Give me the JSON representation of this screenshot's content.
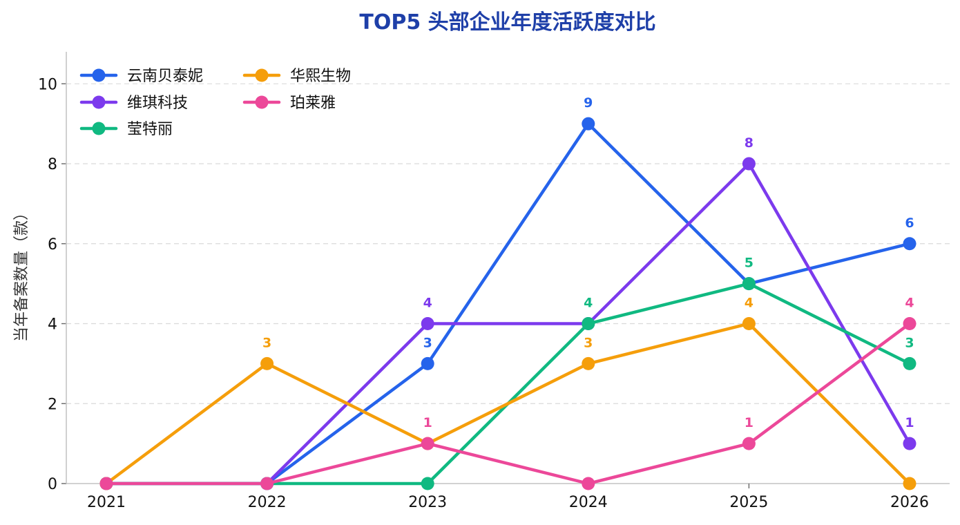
{
  "chart_data": {
    "type": "line",
    "title": "TOP5 头部企业年度活跃度对比",
    "title_color": "#1e3fa8",
    "xlabel": "",
    "ylabel": "当年备案数量（款）",
    "x": [
      "2021",
      "2022",
      "2023",
      "2024",
      "2025",
      "2026"
    ],
    "ylim": [
      0,
      10.8
    ],
    "yticks": [
      0,
      2,
      4,
      6,
      8,
      10
    ],
    "grid": "horizontal-dashed",
    "legend_position": "top-left",
    "series": [
      {
        "name": "云南贝泰妮",
        "color": "#2563eb",
        "values": [
          0,
          0,
          3,
          9,
          5,
          6
        ],
        "labels": [
          null,
          null,
          "3",
          "9",
          null,
          "6"
        ]
      },
      {
        "name": "维琪科技",
        "color": "#7c3aed",
        "values": [
          0,
          0,
          4,
          4,
          8,
          1
        ],
        "labels": [
          null,
          null,
          "4",
          null,
          "8",
          "1"
        ]
      },
      {
        "name": "莹特丽",
        "color": "#10b981",
        "values": [
          0,
          0,
          0,
          4,
          5,
          3
        ],
        "labels": [
          null,
          null,
          null,
          "4",
          "5",
          "3"
        ]
      },
      {
        "name": "华熙生物",
        "color": "#f59e0b",
        "values": [
          0,
          3,
          1,
          3,
          4,
          0
        ],
        "labels": [
          null,
          "3",
          null,
          "3",
          "4",
          null
        ]
      },
      {
        "name": "珀莱雅",
        "color": "#ec4899",
        "values": [
          0,
          0,
          1,
          0,
          1,
          4
        ],
        "labels": [
          null,
          null,
          "1",
          null,
          "1",
          "4"
        ]
      }
    ]
  }
}
